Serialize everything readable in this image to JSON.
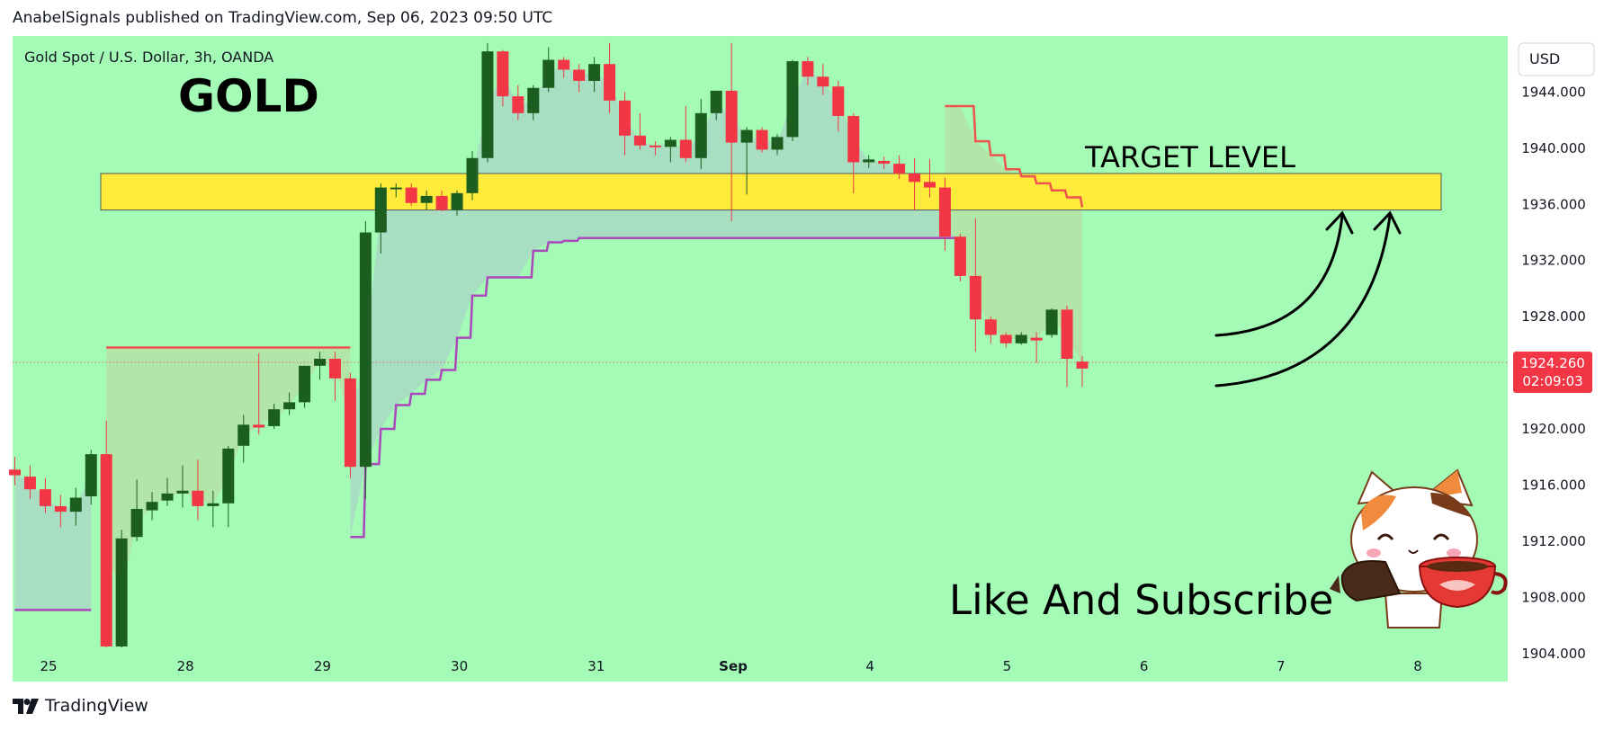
{
  "publisher_line": "AnabelSignals published on TradingView.com, Sep 06, 2023 09:50 UTC",
  "brand": "TradingView",
  "currency": "USD",
  "annotations": {
    "symbol": "Gold Spot / U.S. Dollar, 3h, OANDA",
    "title": "GOLD",
    "target": "TARGET LEVEL",
    "cta": "Like And Subscribe"
  },
  "price_badge": {
    "price": "1924.260",
    "countdown": "02:09:03"
  },
  "colors": {
    "background": "#a3fbb6",
    "up": "#1b5e20",
    "down": "#f23645",
    "supertrend_up": "#ab47bc",
    "supertrend_down": "#ef5350",
    "target_zone": "#ffeb3b",
    "fill_up": "#a8dcc3",
    "fill_down": "#b3e3a6"
  },
  "chart_data": {
    "type": "candlestick",
    "title": "GOLD",
    "instrument": "Gold Spot / U.S. Dollar",
    "timeframe": "3h",
    "source": "OANDA",
    "currency": "USD",
    "ylim": [
      1902,
      1948
    ],
    "y_ticks": [
      "1944.000",
      "1940.000",
      "1936.000",
      "1932.000",
      "1928.000",
      "1924.000",
      "1920.000",
      "1916.000",
      "1912.000",
      "1908.000",
      "1904.000"
    ],
    "x_ticks": [
      "25",
      "28",
      "29",
      "30",
      "31",
      "Sep",
      "4",
      "5",
      "6",
      "7",
      "8"
    ],
    "last_price": 1924.26,
    "candles": [
      {
        "o": 1917.1,
        "h": 1918.0,
        "l": 1916.0,
        "c": 1916.7
      },
      {
        "o": 1916.6,
        "h": 1917.4,
        "l": 1915.0,
        "c": 1915.7
      },
      {
        "o": 1915.7,
        "h": 1916.5,
        "l": 1914.0,
        "c": 1914.5
      },
      {
        "o": 1914.5,
        "h": 1915.3,
        "l": 1913.0,
        "c": 1914.1
      },
      {
        "o": 1914.1,
        "h": 1915.8,
        "l": 1913.1,
        "c": 1915.1
      },
      {
        "o": 1915.2,
        "h": 1918.5,
        "l": 1914.6,
        "c": 1918.2
      },
      {
        "o": 1918.2,
        "h": 1920.6,
        "l": 1904.0,
        "c": 1904.5
      },
      {
        "o": 1904.5,
        "h": 1912.8,
        "l": 1904.0,
        "c": 1912.2
      },
      {
        "o": 1912.3,
        "h": 1916.4,
        "l": 1912.0,
        "c": 1914.3
      },
      {
        "o": 1914.2,
        "h": 1915.5,
        "l": 1913.5,
        "c": 1914.8
      },
      {
        "o": 1914.9,
        "h": 1916.5,
        "l": 1914.5,
        "c": 1915.4
      },
      {
        "o": 1915.4,
        "h": 1917.4,
        "l": 1914.4,
        "c": 1915.6
      },
      {
        "o": 1915.6,
        "h": 1917.8,
        "l": 1913.5,
        "c": 1914.5
      },
      {
        "o": 1914.5,
        "h": 1915.6,
        "l": 1913.0,
        "c": 1914.7
      },
      {
        "o": 1914.7,
        "h": 1918.8,
        "l": 1913.0,
        "c": 1918.6
      },
      {
        "o": 1918.8,
        "h": 1921.0,
        "l": 1917.6,
        "c": 1920.3
      },
      {
        "o": 1920.3,
        "h": 1925.4,
        "l": 1919.6,
        "c": 1920.1
      },
      {
        "o": 1920.2,
        "h": 1921.8,
        "l": 1920.0,
        "c": 1921.4
      },
      {
        "o": 1921.4,
        "h": 1922.6,
        "l": 1921.0,
        "c": 1921.9
      },
      {
        "o": 1921.9,
        "h": 1924.5,
        "l": 1921.5,
        "c": 1924.5
      },
      {
        "o": 1924.5,
        "h": 1925.5,
        "l": 1923.5,
        "c": 1925.0
      },
      {
        "o": 1925.0,
        "h": 1925.5,
        "l": 1922.0,
        "c": 1923.6
      },
      {
        "o": 1923.6,
        "h": 1924.0,
        "l": 1916.5,
        "c": 1917.3
      },
      {
        "o": 1917.3,
        "h": 1934.8,
        "l": 1915.0,
        "c": 1934.0
      },
      {
        "o": 1934.0,
        "h": 1937.5,
        "l": 1932.5,
        "c": 1937.2
      },
      {
        "o": 1937.2,
        "h": 1937.5,
        "l": 1936.5,
        "c": 1937.2
      },
      {
        "o": 1937.2,
        "h": 1937.5,
        "l": 1935.9,
        "c": 1936.1
      },
      {
        "o": 1936.1,
        "h": 1937.0,
        "l": 1935.6,
        "c": 1936.6
      },
      {
        "o": 1936.6,
        "h": 1937.0,
        "l": 1935.5,
        "c": 1935.6
      },
      {
        "o": 1935.6,
        "h": 1937.0,
        "l": 1935.2,
        "c": 1936.8
      },
      {
        "o": 1936.8,
        "h": 1939.8,
        "l": 1936.3,
        "c": 1939.3
      },
      {
        "o": 1939.3,
        "h": 1947.5,
        "l": 1939.0,
        "c": 1946.9
      },
      {
        "o": 1946.9,
        "h": 1947.0,
        "l": 1943.0,
        "c": 1943.7
      },
      {
        "o": 1943.7,
        "h": 1944.5,
        "l": 1942.0,
        "c": 1942.5
      },
      {
        "o": 1942.5,
        "h": 1944.5,
        "l": 1942.0,
        "c": 1944.3
      },
      {
        "o": 1944.3,
        "h": 1947.2,
        "l": 1944.0,
        "c": 1946.3
      },
      {
        "o": 1946.3,
        "h": 1946.5,
        "l": 1945.0,
        "c": 1945.6
      },
      {
        "o": 1945.6,
        "h": 1946.0,
        "l": 1944.0,
        "c": 1944.8
      },
      {
        "o": 1944.8,
        "h": 1946.5,
        "l": 1944.0,
        "c": 1946.0
      },
      {
        "o": 1946.0,
        "h": 1947.5,
        "l": 1942.5,
        "c": 1943.4
      },
      {
        "o": 1943.4,
        "h": 1944.0,
        "l": 1939.5,
        "c": 1940.9
      },
      {
        "o": 1940.9,
        "h": 1942.5,
        "l": 1939.9,
        "c": 1940.2
      },
      {
        "o": 1940.2,
        "h": 1940.5,
        "l": 1939.5,
        "c": 1940.1
      },
      {
        "o": 1940.1,
        "h": 1940.8,
        "l": 1939.0,
        "c": 1940.6
      },
      {
        "o": 1940.6,
        "h": 1943.0,
        "l": 1939.0,
        "c": 1939.3
      },
      {
        "o": 1939.3,
        "h": 1943.5,
        "l": 1938.5,
        "c": 1942.5
      },
      {
        "o": 1942.5,
        "h": 1944.0,
        "l": 1942.0,
        "c": 1944.1
      },
      {
        "o": 1944.1,
        "h": 1947.5,
        "l": 1934.8,
        "c": 1940.4
      },
      {
        "o": 1940.4,
        "h": 1941.5,
        "l": 1936.7,
        "c": 1941.3
      },
      {
        "o": 1941.3,
        "h": 1941.5,
        "l": 1939.7,
        "c": 1939.9
      },
      {
        "o": 1939.9,
        "h": 1941.0,
        "l": 1939.5,
        "c": 1940.8
      },
      {
        "o": 1940.8,
        "h": 1946.3,
        "l": 1940.5,
        "c": 1946.2
      },
      {
        "o": 1946.2,
        "h": 1946.5,
        "l": 1944.5,
        "c": 1945.1
      },
      {
        "o": 1945.1,
        "h": 1946.0,
        "l": 1943.8,
        "c": 1944.4
      },
      {
        "o": 1944.4,
        "h": 1944.8,
        "l": 1941.2,
        "c": 1942.3
      },
      {
        "o": 1942.3,
        "h": 1942.5,
        "l": 1936.8,
        "c": 1939.0
      },
      {
        "o": 1939.0,
        "h": 1939.5,
        "l": 1938.6,
        "c": 1939.2
      },
      {
        "o": 1939.1,
        "h": 1939.4,
        "l": 1938.5,
        "c": 1938.9
      },
      {
        "o": 1938.9,
        "h": 1939.5,
        "l": 1937.8,
        "c": 1938.2
      },
      {
        "o": 1938.2,
        "h": 1939.3,
        "l": 1935.6,
        "c": 1937.6
      },
      {
        "o": 1937.6,
        "h": 1939.2,
        "l": 1936.5,
        "c": 1937.2
      },
      {
        "o": 1937.2,
        "h": 1937.9,
        "l": 1932.7,
        "c": 1933.7
      },
      {
        "o": 1933.7,
        "h": 1933.9,
        "l": 1930.5,
        "c": 1930.9
      },
      {
        "o": 1930.9,
        "h": 1935.0,
        "l": 1925.5,
        "c": 1927.8
      },
      {
        "o": 1927.8,
        "h": 1928.0,
        "l": 1926.1,
        "c": 1926.7
      },
      {
        "o": 1926.7,
        "h": 1926.9,
        "l": 1925.8,
        "c": 1926.1
      },
      {
        "o": 1926.1,
        "h": 1926.9,
        "l": 1926.0,
        "c": 1926.7
      },
      {
        "o": 1926.5,
        "h": 1926.9,
        "l": 1924.7,
        "c": 1926.3
      },
      {
        "o": 1926.7,
        "h": 1928.6,
        "l": 1926.5,
        "c": 1928.5
      },
      {
        "o": 1928.5,
        "h": 1928.8,
        "l": 1923.0,
        "c": 1925.0
      },
      {
        "o": 1924.8,
        "h": 1925.2,
        "l": 1923.0,
        "c": 1924.3
      }
    ],
    "supertrend": [
      {
        "trend": "up",
        "from": 0,
        "to": 5,
        "level": 1907.1
      },
      {
        "trend": "down",
        "from": 6,
        "to": 22,
        "level": 1925.8
      },
      {
        "trend": "up",
        "from": 22,
        "to": 62,
        "levels": [
          1912.3,
          1917.5,
          1920.0,
          1921.7,
          1922.5,
          1923.5,
          1924.2,
          1926.5,
          1929.5,
          1930.8,
          1930.8,
          1930.8,
          1932.7,
          1933.3,
          1933.4,
          1933.6,
          1933.6,
          1933.6,
          1933.6,
          1933.6,
          1933.6,
          1933.6,
          1933.6,
          1933.6,
          1933.6,
          1933.6,
          1933.6,
          1933.6,
          1933.6,
          1933.6,
          1933.6,
          1933.6,
          1933.6,
          1933.6,
          1933.6,
          1933.6,
          1933.6,
          1933.6,
          1933.6,
          1933.6,
          1933.6
        ]
      },
      {
        "trend": "down",
        "from": 61,
        "to": 70,
        "levels": [
          1943.0,
          1943.0,
          1940.5,
          1939.5,
          1938.5,
          1938.0,
          1937.5,
          1937.0,
          1936.5,
          1935.8
        ]
      }
    ],
    "target_zone": {
      "low": 1935.6,
      "high": 1938.2,
      "label": "TARGET LEVEL"
    }
  }
}
